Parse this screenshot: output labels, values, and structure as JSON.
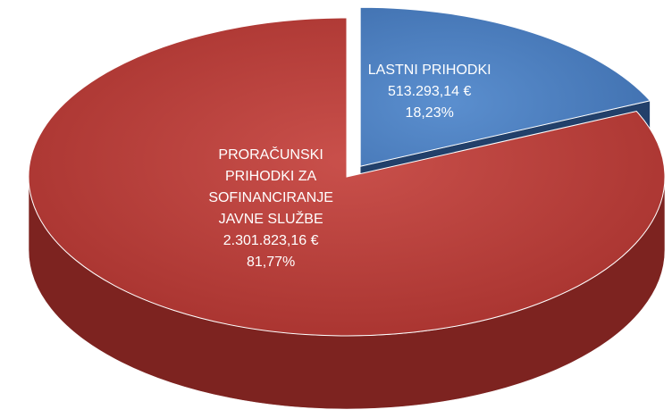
{
  "chart_data": {
    "type": "pie3d",
    "categories": [
      "PRORAČUNSKI PRIHODKI ZA SOFINANCIRANJE JAVNE SLUŽBE",
      "LASTNI PRIHODKI"
    ],
    "values": [
      81.77,
      18.23
    ],
    "value_labels": [
      "81,77%",
      "18,23%"
    ],
    "amounts": [
      2301823.16,
      513293.14
    ],
    "amount_labels": [
      "2.301.823,16 €",
      "513.293,14 €"
    ],
    "colors": [
      "#b33e39",
      "#4a7dbb"
    ],
    "side_colors": [
      "#7d2320",
      "#22406a"
    ],
    "exploded": [
      false,
      true
    ]
  }
}
